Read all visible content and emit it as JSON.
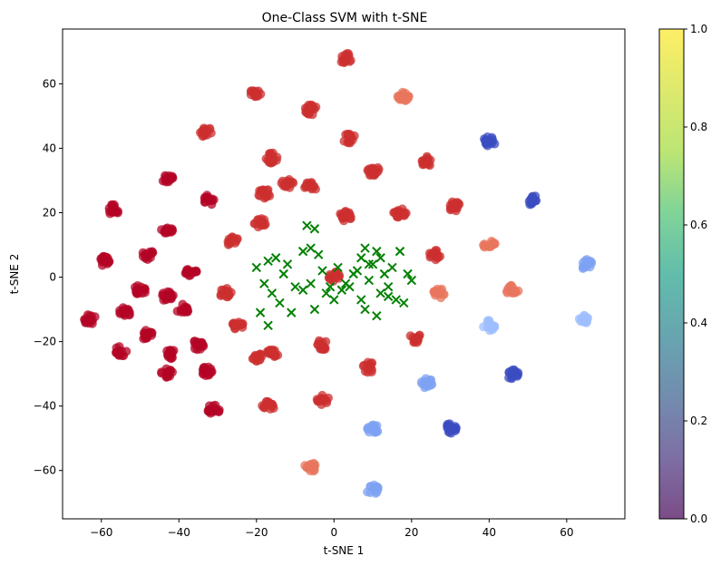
{
  "chart_data": {
    "type": "scatter",
    "title": "One-Class SVM with t-SNE",
    "xlabel": "t-SNE 1",
    "ylabel": "t-SNE 2",
    "xlim": [
      -70,
      75
    ],
    "ylim": [
      -75,
      77
    ],
    "xticks": [
      "−60",
      "−40",
      "−20",
      "0",
      "20",
      "40",
      "60"
    ],
    "xtick_values": [
      -60,
      -40,
      -20,
      0,
      20,
      40,
      60
    ],
    "yticks": [
      "−60",
      "−40",
      "−20",
      "0",
      "20",
      "40",
      "60"
    ],
    "ytick_values": [
      -60,
      -40,
      -20,
      0,
      20,
      40,
      60
    ],
    "grid": false,
    "colormap": "viridis",
    "colorbar": {
      "range": [
        0.0,
        1.0
      ],
      "ticks": [
        "0.0",
        "0.2",
        "0.4",
        "0.6",
        "0.8",
        "1.0"
      ],
      "tick_values": [
        0.0,
        0.2,
        0.4,
        0.6,
        0.8,
        1.0
      ],
      "alpha": 0.7
    },
    "colors": {
      "dark_red": "#b40426",
      "red": "#cc2f2f",
      "salmon": "#e8765e",
      "blue": "#3b4cc0",
      "light_blue": "#7ea2f3",
      "pale_blue": "#9ebeff",
      "outlier_green": "#008000"
    },
    "clusters": [
      {
        "x": 3,
        "y": 68,
        "color": "red"
      },
      {
        "x": -20,
        "y": 57,
        "color": "red"
      },
      {
        "x": 18,
        "y": 56,
        "color": "salmon"
      },
      {
        "x": -6,
        "y": 52,
        "color": "red"
      },
      {
        "x": -33,
        "y": 45,
        "color": "red"
      },
      {
        "x": 4,
        "y": 43,
        "color": "red"
      },
      {
        "x": 40,
        "y": 42,
        "color": "blue"
      },
      {
        "x": -16,
        "y": 37,
        "color": "red"
      },
      {
        "x": 24,
        "y": 36,
        "color": "red"
      },
      {
        "x": 10,
        "y": 33,
        "color": "red"
      },
      {
        "x": -43,
        "y": 31,
        "color": "dark_red"
      },
      {
        "x": -12,
        "y": 29,
        "color": "red"
      },
      {
        "x": -6,
        "y": 28,
        "color": "red"
      },
      {
        "x": -18,
        "y": 26,
        "color": "red"
      },
      {
        "x": 51,
        "y": 24,
        "color": "blue"
      },
      {
        "x": -32,
        "y": 24,
        "color": "dark_red"
      },
      {
        "x": 31,
        "y": 22,
        "color": "red"
      },
      {
        "x": -57,
        "y": 21,
        "color": "dark_red"
      },
      {
        "x": 17,
        "y": 20,
        "color": "red"
      },
      {
        "x": 3,
        "y": 19,
        "color": "red"
      },
      {
        "x": -19,
        "y": 17,
        "color": "red"
      },
      {
        "x": -43,
        "y": 15,
        "color": "dark_red"
      },
      {
        "x": -26,
        "y": 11,
        "color": "red"
      },
      {
        "x": 40,
        "y": 10,
        "color": "salmon"
      },
      {
        "x": -48,
        "y": 7,
        "color": "dark_red"
      },
      {
        "x": -59,
        "y": 5,
        "color": "dark_red"
      },
      {
        "x": 26,
        "y": 7,
        "color": "red"
      },
      {
        "x": 65,
        "y": 4,
        "color": "light_blue"
      },
      {
        "x": -37,
        "y": 2,
        "color": "dark_red"
      },
      {
        "x": 0,
        "y": 0,
        "color": "red"
      },
      {
        "x": -50,
        "y": -4,
        "color": "dark_red"
      },
      {
        "x": -28,
        "y": -5,
        "color": "red"
      },
      {
        "x": -43,
        "y": -6,
        "color": "dark_red"
      },
      {
        "x": 46,
        "y": -4,
        "color": "salmon"
      },
      {
        "x": 27,
        "y": -5,
        "color": "salmon"
      },
      {
        "x": -39,
        "y": -10,
        "color": "dark_red"
      },
      {
        "x": -54,
        "y": -11,
        "color": "dark_red"
      },
      {
        "x": -63,
        "y": -13,
        "color": "dark_red"
      },
      {
        "x": 64,
        "y": -13,
        "color": "pale_blue"
      },
      {
        "x": -25,
        "y": -15,
        "color": "red"
      },
      {
        "x": 40,
        "y": -15,
        "color": "pale_blue"
      },
      {
        "x": -48,
        "y": -18,
        "color": "dark_red"
      },
      {
        "x": 21,
        "y": -19,
        "color": "red"
      },
      {
        "x": -3,
        "y": -21,
        "color": "red"
      },
      {
        "x": -35,
        "y": -21,
        "color": "dark_red"
      },
      {
        "x": -55,
        "y": -23,
        "color": "dark_red"
      },
      {
        "x": -42,
        "y": -24,
        "color": "dark_red"
      },
      {
        "x": -16,
        "y": -24,
        "color": "red"
      },
      {
        "x": -20,
        "y": -25,
        "color": "red"
      },
      {
        "x": 9,
        "y": -28,
        "color": "red"
      },
      {
        "x": -33,
        "y": -29,
        "color": "dark_red"
      },
      {
        "x": -43,
        "y": -30,
        "color": "dark_red"
      },
      {
        "x": 46,
        "y": -30,
        "color": "blue"
      },
      {
        "x": 24,
        "y": -33,
        "color": "light_blue"
      },
      {
        "x": -3,
        "y": -38,
        "color": "red"
      },
      {
        "x": -17,
        "y": -40,
        "color": "red"
      },
      {
        "x": -31,
        "y": -41,
        "color": "dark_red"
      },
      {
        "x": 10,
        "y": -47,
        "color": "light_blue"
      },
      {
        "x": 30,
        "y": -47,
        "color": "blue"
      },
      {
        "x": -6,
        "y": -59,
        "color": "salmon"
      },
      {
        "x": 10,
        "y": -66,
        "color": "light_blue"
      }
    ],
    "outliers": [
      {
        "x": -20,
        "y": 3
      },
      {
        "x": -17,
        "y": 5
      },
      {
        "x": -15,
        "y": 6
      },
      {
        "x": -12,
        "y": 4
      },
      {
        "x": -18,
        "y": -2
      },
      {
        "x": -16,
        "y": -5
      },
      {
        "x": -14,
        "y": -8
      },
      {
        "x": -19,
        "y": -11
      },
      {
        "x": -17,
        "y": -15
      },
      {
        "x": -11,
        "y": -11
      },
      {
        "x": -13,
        "y": 1
      },
      {
        "x": -10,
        "y": -3
      },
      {
        "x": -8,
        "y": 8
      },
      {
        "x": -7,
        "y": 16
      },
      {
        "x": -5,
        "y": 15
      },
      {
        "x": -6,
        "y": 9
      },
      {
        "x": -4,
        "y": 7
      },
      {
        "x": -3,
        "y": 2
      },
      {
        "x": -6,
        "y": -2
      },
      {
        "x": -5,
        "y": -10
      },
      {
        "x": -8,
        "y": -4
      },
      {
        "x": -2,
        "y": -5
      },
      {
        "x": 0,
        "y": -7
      },
      {
        "x": 2,
        "y": -4
      },
      {
        "x": 4,
        "y": -3
      },
      {
        "x": 6,
        "y": 2
      },
      {
        "x": 7,
        "y": 6
      },
      {
        "x": 8,
        "y": 9
      },
      {
        "x": 9,
        "y": -1
      },
      {
        "x": 10,
        "y": 4
      },
      {
        "x": 11,
        "y": 8
      },
      {
        "x": 12,
        "y": -5
      },
      {
        "x": 13,
        "y": 1
      },
      {
        "x": 14,
        "y": -3
      },
      {
        "x": 15,
        "y": 3
      },
      {
        "x": 16,
        "y": -7
      },
      {
        "x": 17,
        "y": 8
      },
      {
        "x": 19,
        "y": 1
      },
      {
        "x": 20,
        "y": -1
      },
      {
        "x": 18,
        "y": -8
      },
      {
        "x": 8,
        "y": -10
      },
      {
        "x": 11,
        "y": -12
      },
      {
        "x": 3,
        "y": -2
      },
      {
        "x": 7,
        "y": -7
      },
      {
        "x": 5,
        "y": 1
      },
      {
        "x": 12,
        "y": 6
      },
      {
        "x": 9,
        "y": 4
      },
      {
        "x": 14,
        "y": -6
      },
      {
        "x": -1,
        "y": -3
      },
      {
        "x": 1,
        "y": 3
      }
    ]
  }
}
